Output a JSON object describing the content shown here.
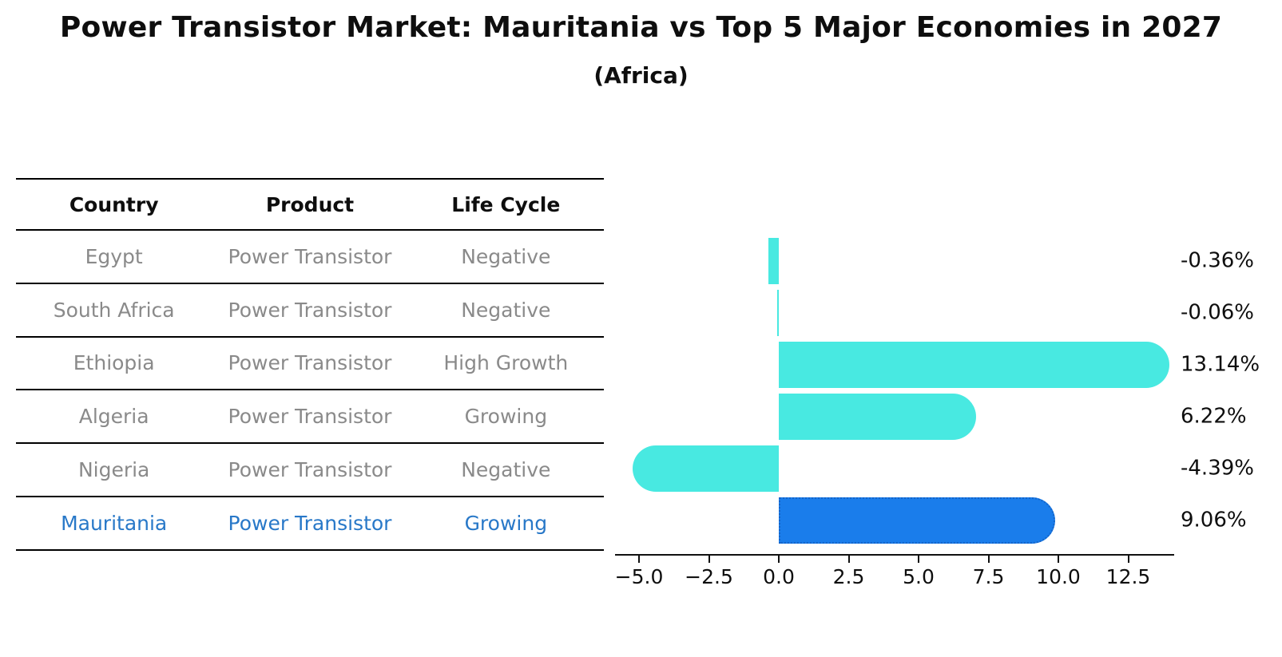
{
  "title": "Power Transistor Market: Mauritania vs Top 5 Major Economies in 2027",
  "subtitle": "(Africa)",
  "table": {
    "headers": [
      "Country",
      "Product",
      "Life Cycle"
    ],
    "rows": [
      {
        "country": "Egypt",
        "product": "Power Transistor",
        "life_cycle": "Negative",
        "highlight": false
      },
      {
        "country": "South Africa",
        "product": "Power Transistor",
        "life_cycle": "Negative",
        "highlight": false
      },
      {
        "country": "Ethiopia",
        "product": "Power Transistor",
        "life_cycle": "High Growth",
        "highlight": false
      },
      {
        "country": "Algeria",
        "product": "Power Transistor",
        "life_cycle": "Growing",
        "highlight": false
      },
      {
        "country": "Nigeria",
        "product": "Power Transistor",
        "life_cycle": "Negative",
        "highlight": false
      },
      {
        "country": "Mauritania",
        "product": "Power Transistor",
        "life_cycle": "Growing",
        "highlight": true
      }
    ]
  },
  "chart_data": {
    "type": "bar",
    "orientation": "horizontal",
    "title": "Power Transistor Market: Mauritania vs Top 5 Major Economies in 2027",
    "subtitle": "(Africa)",
    "categories": [
      "Egypt",
      "South Africa",
      "Ethiopia",
      "Algeria",
      "Nigeria",
      "Mauritania"
    ],
    "values": [
      -0.36,
      -0.06,
      13.14,
      6.22,
      -4.39,
      9.06
    ],
    "value_labels": [
      "-0.36%",
      "-0.06%",
      "13.14%",
      "6.22%",
      "-4.39%",
      "9.06%"
    ],
    "x_ticks": [
      "−5.0",
      "−2.5",
      "0.0",
      "2.5",
      "5.0",
      "7.5",
      "10.0",
      "12.5"
    ],
    "x_tick_values": [
      -5,
      -2.5,
      0,
      2.5,
      5,
      7.5,
      10,
      12.5
    ],
    "xlim": [
      -5.86,
      14.14
    ],
    "grid": false,
    "legend": "none",
    "highlight_index": 5,
    "colors": {
      "default_bar": "#48e9e1",
      "highlight_bar": "#1a7deb",
      "highlight_border": "#1464c8",
      "highlight_text": "#2878c8",
      "cell_text": "#8a8a8a",
      "text": "#0e0e0e"
    }
  }
}
